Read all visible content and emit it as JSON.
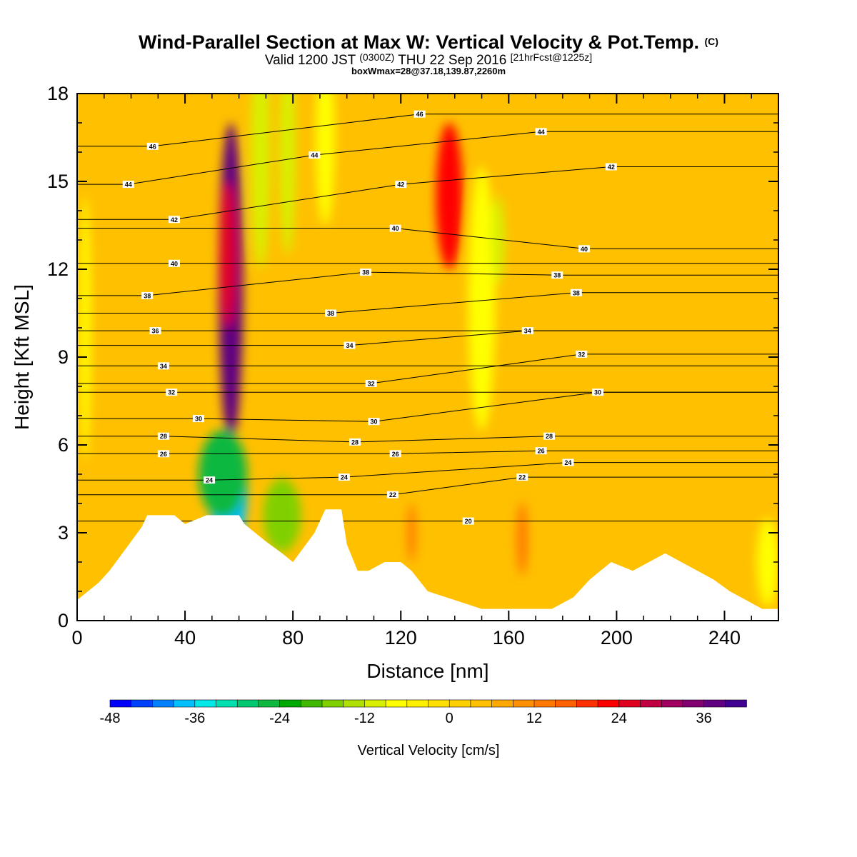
{
  "header": {
    "title": "Wind-Parallel Section at Max W: Vertical Velocity & Pot.Temp.",
    "title_mark": "(C)",
    "subtitle_a": "Valid 1200 JST",
    "subtitle_b": "(0300Z)",
    "subtitle_c": "THU 22 Sep 2016",
    "subtitle_d": "[21hrFcst@1225z]",
    "subtitle2": "boxWmax=28@37.18,139.87,2260m"
  },
  "chart_data": {
    "type": "heatmap",
    "xlabel": "Distance [nm]",
    "ylabel": "Height [Kft MSL]",
    "xlim": [
      0,
      260
    ],
    "ylim": [
      0,
      18
    ],
    "x_ticks": [
      "0",
      "40",
      "80",
      "120",
      "160",
      "200",
      "240"
    ],
    "y_ticks": [
      "0",
      "3",
      "6",
      "9",
      "12",
      "15",
      "18"
    ],
    "colorbar": {
      "label": "Vertical Velocity [cm/s]",
      "tick_labels": [
        "-48",
        "-36",
        "-24",
        "-12",
        "0",
        "12",
        "24",
        "36"
      ],
      "levels": [
        -48,
        -45,
        -42,
        -39,
        -36,
        -33,
        -30,
        -27,
        -24,
        -21,
        -18,
        -15,
        -12,
        -9,
        -6,
        -3,
        0,
        3,
        6,
        9,
        12,
        15,
        18,
        21,
        24,
        27,
        30,
        33,
        36,
        39
      ],
      "colors": [
        "#0000ff",
        "#0040ff",
        "#0080ff",
        "#00c0ff",
        "#00e8e8",
        "#00e0b0",
        "#00c870",
        "#10b840",
        "#00a800",
        "#40b800",
        "#80d000",
        "#b0e000",
        "#d8f000",
        "#ffff00",
        "#fff000",
        "#ffe000",
        "#ffd000",
        "#ffc000",
        "#ffa800",
        "#ff9000",
        "#ff7800",
        "#ff6000",
        "#ff3000",
        "#ff0000",
        "#e00020",
        "#c00040",
        "#a00060",
        "#800070",
        "#600080",
        "#400090"
      ]
    },
    "terrain_kft": [
      [
        0,
        0.7
      ],
      [
        4,
        1.0
      ],
      [
        8,
        1.3
      ],
      [
        12,
        1.7
      ],
      [
        16,
        2.2
      ],
      [
        20,
        2.7
      ],
      [
        24,
        3.2
      ],
      [
        26,
        3.6
      ],
      [
        36,
        3.6
      ],
      [
        40,
        3.3
      ],
      [
        48,
        3.6
      ],
      [
        60,
        3.6
      ],
      [
        62,
        3.3
      ],
      [
        66,
        3.0
      ],
      [
        70,
        2.7
      ],
      [
        76,
        2.3
      ],
      [
        80,
        2.0
      ],
      [
        84,
        2.5
      ],
      [
        88,
        3.0
      ],
      [
        92,
        3.8
      ],
      [
        98,
        3.8
      ],
      [
        100,
        2.6
      ],
      [
        104,
        1.7
      ],
      [
        108,
        1.7
      ],
      [
        114,
        2.0
      ],
      [
        120,
        2.0
      ],
      [
        124,
        1.7
      ],
      [
        130,
        1.0
      ],
      [
        140,
        0.7
      ],
      [
        150,
        0.4
      ],
      [
        164,
        0.4
      ],
      [
        176,
        0.4
      ],
      [
        184,
        0.8
      ],
      [
        190,
        1.4
      ],
      [
        194,
        1.7
      ],
      [
        198,
        2.0
      ],
      [
        206,
        1.7
      ],
      [
        212,
        2.0
      ],
      [
        218,
        2.3
      ],
      [
        224,
        2.0
      ],
      [
        230,
        1.7
      ],
      [
        236,
        1.4
      ],
      [
        242,
        1.0
      ],
      [
        248,
        0.7
      ],
      [
        254,
        0.4
      ],
      [
        260,
        0.4
      ]
    ],
    "cells_cm_s": [
      {
        "x": 3,
        "y": 10.0,
        "w": 4,
        "h": 9.0,
        "value": -9
      },
      {
        "x": 57,
        "y": 11.5,
        "w": 9,
        "h": 11.0,
        "value": 36
      },
      {
        "x": 56,
        "y": 12.5,
        "w": 6,
        "h": 5.0,
        "value": 24
      },
      {
        "x": 56,
        "y": 4.4,
        "w": 14,
        "h": 4.0,
        "value": -39
      },
      {
        "x": 54,
        "y": 5.0,
        "w": 18,
        "h": 3.0,
        "value": -27
      },
      {
        "x": 76,
        "y": 3.6,
        "w": 14,
        "h": 2.5,
        "value": -18
      },
      {
        "x": 68,
        "y": 16.0,
        "w": 7,
        "h": 8.0,
        "value": -12
      },
      {
        "x": 78,
        "y": 16.0,
        "w": 6,
        "h": 7.0,
        "value": -12
      },
      {
        "x": 92,
        "y": 16.5,
        "w": 7,
        "h": 6.0,
        "value": -9
      },
      {
        "x": 138,
        "y": 14.5,
        "w": 10,
        "h": 5.0,
        "value": 21
      },
      {
        "x": 150,
        "y": 11.0,
        "w": 10,
        "h": 9.0,
        "value": -9
      },
      {
        "x": 156,
        "y": 13.0,
        "w": 5,
        "h": 3.0,
        "value": -12
      },
      {
        "x": 256,
        "y": 2.0,
        "w": 8,
        "h": 3.0,
        "value": -9
      },
      {
        "x": 165,
        "y": 2.8,
        "w": 4,
        "h": 2.5,
        "value": 12
      },
      {
        "x": 124,
        "y": 3.0,
        "w": 3,
        "h": 2.0,
        "value": 12
      }
    ],
    "pot_temp_contours": [
      {
        "theta": 46,
        "labels": [
          [
            28,
            16.2
          ],
          [
            127,
            17.3
          ]
        ]
      },
      {
        "theta": 44,
        "labels": [
          [
            19,
            14.9
          ],
          [
            88,
            15.9
          ],
          [
            172,
            16.7
          ]
        ]
      },
      {
        "theta": 42,
        "labels": [
          [
            36,
            13.7
          ],
          [
            120,
            14.9
          ],
          [
            198,
            15.5
          ]
        ]
      },
      {
        "theta": 40,
        "labels": [
          [
            118,
            13.4
          ],
          [
            188,
            12.7
          ]
        ]
      },
      {
        "theta": 40,
        "labels": [
          [
            36,
            12.2
          ]
        ]
      },
      {
        "theta": 38,
        "labels": [
          [
            26,
            11.1
          ],
          [
            107,
            11.9
          ],
          [
            178,
            11.8
          ]
        ]
      },
      {
        "theta": 38,
        "labels": [
          [
            94,
            10.5
          ],
          [
            185,
            11.2
          ]
        ]
      },
      {
        "theta": 36,
        "labels": [
          [
            29,
            9.9
          ]
        ]
      },
      {
        "theta": 34,
        "labels": [
          [
            101,
            9.4
          ],
          [
            167,
            9.9
          ]
        ]
      },
      {
        "theta": 34,
        "labels": [
          [
            32,
            8.7
          ]
        ]
      },
      {
        "theta": 32,
        "labels": [
          [
            109,
            8.1
          ],
          [
            187,
            9.1
          ]
        ]
      },
      {
        "theta": 32,
        "labels": [
          [
            35,
            7.8
          ]
        ]
      },
      {
        "theta": 30,
        "labels": [
          [
            45,
            6.9
          ],
          [
            110,
            6.8
          ],
          [
            193,
            7.8
          ]
        ]
      },
      {
        "theta": 28,
        "labels": [
          [
            32,
            6.3
          ],
          [
            103,
            6.1
          ],
          [
            175,
            6.3
          ]
        ]
      },
      {
        "theta": 26,
        "labels": [
          [
            32,
            5.7
          ],
          [
            118,
            5.7
          ],
          [
            172,
            5.8
          ]
        ]
      },
      {
        "theta": 24,
        "labels": [
          [
            49,
            4.8
          ],
          [
            99,
            4.9
          ],
          [
            182,
            5.4
          ]
        ]
      },
      {
        "theta": 22,
        "labels": [
          [
            117,
            4.3
          ],
          [
            165,
            4.9
          ]
        ]
      },
      {
        "theta": 20,
        "labels": [
          [
            145,
            3.4
          ]
        ]
      }
    ]
  }
}
